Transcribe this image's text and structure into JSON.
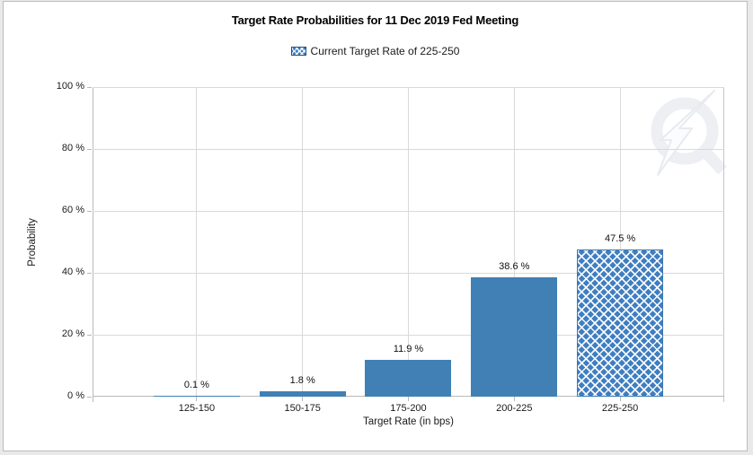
{
  "panel": {
    "page_background": "#e9e9eb",
    "panel_background": "#ffffff",
    "panel_border": "#bcbcbc"
  },
  "chart_data": {
    "type": "bar",
    "title": "Target Rate Probabilities for 11 Dec 2019 Fed Meeting",
    "legend": {
      "position": "top",
      "label": "Current Target Rate of 225-250",
      "swatch_style": "blue-crosshatch"
    },
    "categories": [
      "125-150",
      "150-175",
      "175-200",
      "200-225",
      "225-250"
    ],
    "values": [
      0.1,
      1.8,
      11.9,
      38.6,
      47.5
    ],
    "value_labels": [
      "0.1 %",
      "1.8 %",
      "11.9 %",
      "38.6 %",
      "47.5 %"
    ],
    "highlighted_category": "225-250",
    "xlabel": "Target Rate (in bps)",
    "ylabel": "Probability",
    "ylim": [
      0,
      100
    ],
    "ytick_step": 20,
    "ytick_labels": [
      "0 %",
      "20 %",
      "40 %",
      "60 %",
      "80 %",
      "100 %"
    ],
    "grid": true,
    "colors": {
      "bar": "#4080b4",
      "bar_hatch": "#3f7ec0",
      "hatch_border": "#3a77b3",
      "gridline": "#d9d9d9",
      "axis": "#b9b9b9",
      "text": "#1a1a1a"
    }
  },
  "watermark": {
    "name": "quikstrike-logo"
  }
}
